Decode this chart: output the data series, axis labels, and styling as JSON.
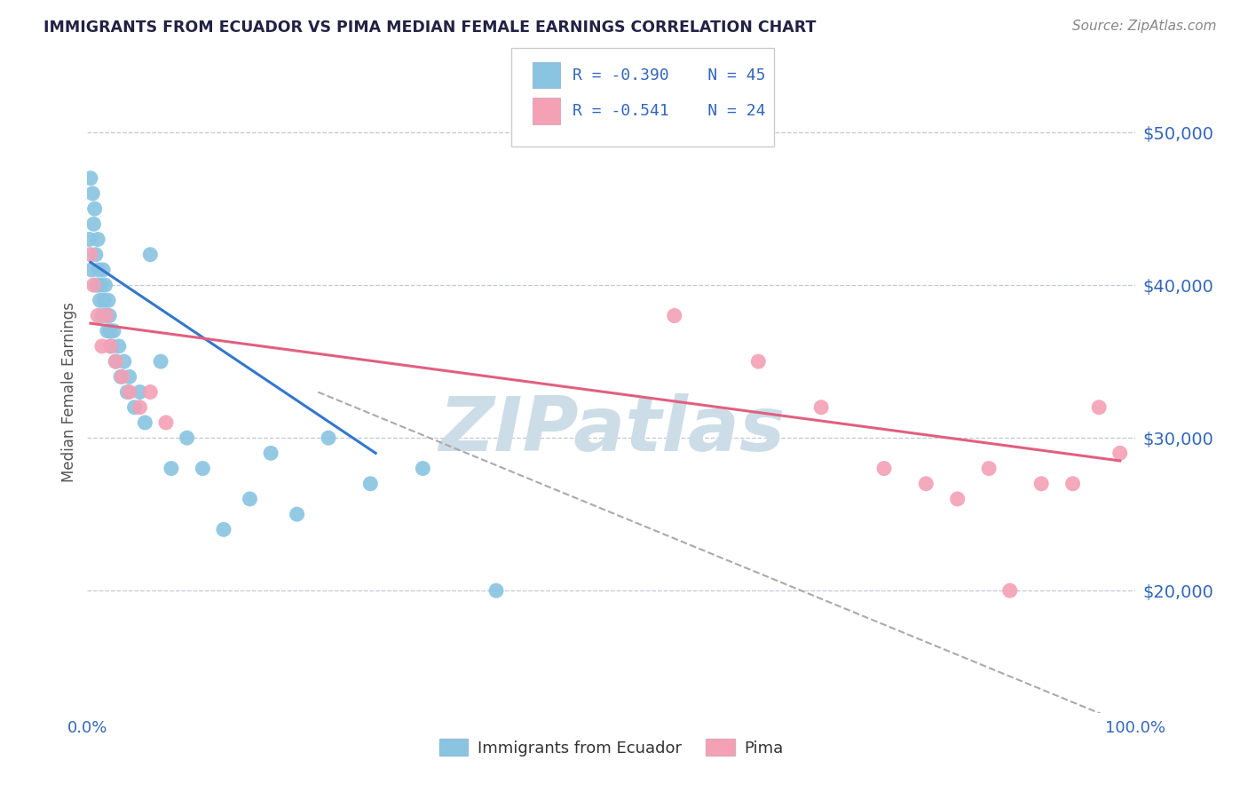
{
  "title": "IMMIGRANTS FROM ECUADOR VS PIMA MEDIAN FEMALE EARNINGS CORRELATION CHART",
  "source_text": "Source: ZipAtlas.com",
  "ylabel": "Median Female Earnings",
  "x_min": 0.0,
  "x_max": 1.0,
  "y_min": 12000,
  "y_max": 54000,
  "yticks": [
    20000,
    30000,
    40000,
    50000
  ],
  "ytick_labels": [
    "$20,000",
    "$30,000",
    "$40,000",
    "$50,000"
  ],
  "xtick_labels": [
    "0.0%",
    "100.0%"
  ],
  "legend_labels": [
    "Immigrants from Ecuador",
    "Pima"
  ],
  "legend_r1": "R = -0.390",
  "legend_n1": "N = 45",
  "legend_r2": "R = -0.541",
  "legend_n2": "N = 24",
  "color_blue": "#89c4e1",
  "color_pink": "#f4a0b5",
  "color_text_blue": "#3366bb",
  "title_color": "#222244",
  "grid_color": "#c0c8d8",
  "watermark_color": "#ccdde8",
  "blue_scatter_x": [
    0.002,
    0.003,
    0.004,
    0.005,
    0.006,
    0.007,
    0.008,
    0.009,
    0.01,
    0.011,
    0.012,
    0.013,
    0.014,
    0.015,
    0.016,
    0.017,
    0.018,
    0.019,
    0.02,
    0.021,
    0.022,
    0.023,
    0.025,
    0.027,
    0.03,
    0.032,
    0.035,
    0.038,
    0.04,
    0.045,
    0.05,
    0.055,
    0.06,
    0.07,
    0.08,
    0.095,
    0.11,
    0.13,
    0.155,
    0.175,
    0.2,
    0.23,
    0.27,
    0.32,
    0.39
  ],
  "blue_scatter_y": [
    43000,
    47000,
    41000,
    46000,
    44000,
    45000,
    42000,
    40000,
    43000,
    41000,
    39000,
    40000,
    38000,
    41000,
    39000,
    40000,
    38000,
    37000,
    39000,
    38000,
    37000,
    36000,
    37000,
    35000,
    36000,
    34000,
    35000,
    33000,
    34000,
    32000,
    33000,
    31000,
    42000,
    35000,
    28000,
    30000,
    28000,
    24000,
    26000,
    29000,
    25000,
    30000,
    27000,
    28000,
    20000
  ],
  "pink_scatter_x": [
    0.003,
    0.006,
    0.01,
    0.014,
    0.018,
    0.022,
    0.027,
    0.033,
    0.04,
    0.05,
    0.06,
    0.075,
    0.56,
    0.64,
    0.7,
    0.76,
    0.8,
    0.83,
    0.86,
    0.88,
    0.91,
    0.94,
    0.965,
    0.985
  ],
  "pink_scatter_y": [
    42000,
    40000,
    38000,
    36000,
    38000,
    36000,
    35000,
    34000,
    33000,
    32000,
    33000,
    31000,
    38000,
    35000,
    32000,
    28000,
    27000,
    26000,
    28000,
    20000,
    27000,
    27000,
    32000,
    29000
  ],
  "blue_line_x": [
    0.003,
    0.275
  ],
  "blue_line_y": [
    41500,
    29000
  ],
  "pink_line_x": [
    0.003,
    0.985
  ],
  "pink_line_y": [
    37500,
    28500
  ],
  "dashed_line_x": [
    0.22,
    1.0
  ],
  "dashed_line_y": [
    33000,
    11000
  ]
}
